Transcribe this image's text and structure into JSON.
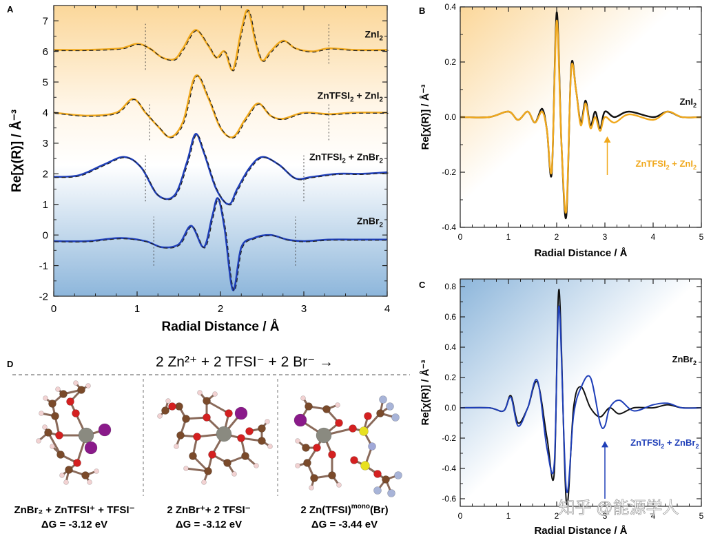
{
  "panels": {
    "A": {
      "letter": "A"
    },
    "B": {
      "letter": "B"
    },
    "C": {
      "letter": "C"
    },
    "D": {
      "letter": "D"
    }
  },
  "colors": {
    "orange": "#f0a81c",
    "blue": "#1f3fb8",
    "black": "#111111",
    "dashed": "#222222"
  },
  "chart_data": [
    {
      "id": "A",
      "type": "line",
      "xlabel": "Radial Distance / Å",
      "ylabel": "Re[χ(R)] / Å⁻³",
      "xlim": [
        0,
        4
      ],
      "ylim": [
        -2,
        7.5
      ],
      "xticks": [
        "0",
        "1",
        "2",
        "3",
        "4"
      ],
      "yticks": [
        "-2",
        "-1",
        "0",
        "1",
        "2",
        "3",
        "4",
        "5",
        "6",
        "7"
      ],
      "grid": false,
      "series": [
        {
          "name": "ZnI₂",
          "color": "orange",
          "offset": 6.05,
          "x": [
            0,
            0.4,
            0.8,
            1.0,
            1.15,
            1.3,
            1.45,
            1.55,
            1.7,
            1.85,
            1.95,
            2.05,
            2.15,
            2.25,
            2.33,
            2.42,
            2.5,
            2.6,
            2.75,
            2.9,
            3.1,
            3.3,
            3.6,
            4.0
          ],
          "y": [
            6.05,
            6.05,
            6.1,
            6.25,
            6.1,
            5.8,
            5.75,
            6.1,
            6.7,
            6.2,
            5.8,
            6.0,
            5.4,
            6.7,
            7.35,
            6.3,
            5.7,
            6.0,
            6.35,
            6.1,
            6.0,
            6.1,
            6.05,
            6.05
          ],
          "fit_dashed": true
        },
        {
          "name": "ZnTFSI₂ + ZnI₂",
          "color": "orange",
          "offset": 4.0,
          "x": [
            0,
            0.4,
            0.75,
            0.95,
            1.1,
            1.25,
            1.4,
            1.55,
            1.7,
            1.85,
            2.0,
            2.15,
            2.3,
            2.45,
            2.6,
            2.75,
            3.0,
            3.3,
            3.6,
            4.0
          ],
          "y": [
            4.0,
            3.9,
            4.0,
            4.45,
            4.0,
            3.55,
            3.2,
            3.7,
            5.2,
            4.5,
            3.5,
            3.2,
            3.8,
            4.3,
            3.9,
            3.8,
            4.0,
            3.95,
            4.0,
            4.0
          ],
          "fit_dashed": true
        },
        {
          "name": "ZnTFSI₂ + ZnBr₂",
          "color": "blue",
          "offset": 1.95,
          "x": [
            0,
            0.3,
            0.6,
            0.85,
            1.05,
            1.25,
            1.45,
            1.6,
            1.7,
            1.8,
            1.95,
            2.1,
            2.2,
            2.35,
            2.5,
            2.7,
            2.9,
            3.1,
            3.4,
            3.7,
            4.0
          ],
          "y": [
            1.9,
            1.95,
            2.3,
            2.55,
            2.2,
            1.3,
            1.3,
            2.4,
            3.3,
            2.7,
            1.5,
            1.0,
            1.5,
            2.2,
            2.55,
            2.3,
            1.85,
            1.9,
            2.0,
            2.0,
            2.05
          ],
          "fit_dashed": true
        },
        {
          "name": "ZnBr₂",
          "color": "blue",
          "offset": -0.2,
          "x": [
            0,
            0.4,
            0.8,
            1.1,
            1.3,
            1.5,
            1.65,
            1.8,
            1.9,
            1.97,
            2.05,
            2.15,
            2.25,
            2.4,
            2.6,
            2.8,
            3.0,
            3.3,
            3.6,
            4.0
          ],
          "y": [
            -0.2,
            -0.2,
            -0.1,
            -0.2,
            -0.4,
            -0.3,
            0.3,
            -0.4,
            0.6,
            1.2,
            0.2,
            -1.8,
            -0.4,
            -0.1,
            0.0,
            -0.15,
            -0.2,
            -0.15,
            -0.15,
            -0.15
          ],
          "fit_dashed": true
        }
      ],
      "vlines": [
        {
          "x": 1.1,
          "from": 5.4,
          "to": 6.9
        },
        {
          "x": 3.3,
          "from": 5.6,
          "to": 6.9
        },
        {
          "x": 1.15,
          "from": 3.1,
          "to": 4.3
        },
        {
          "x": 3.3,
          "from": 3.1,
          "to": 4.3
        },
        {
          "x": 1.1,
          "from": 1.1,
          "to": 2.6
        },
        {
          "x": 3.0,
          "from": 1.1,
          "to": 2.6
        },
        {
          "x": 1.2,
          "from": -1.0,
          "to": 0.6
        },
        {
          "x": 2.9,
          "from": -1.0,
          "to": 0.6
        }
      ],
      "labels": [
        {
          "text_a": "ZnI",
          "sub": "2",
          "text_b": "",
          "x": 3.95,
          "y": 6.45,
          "anchor": "end"
        },
        {
          "text_a": "ZnTFSI",
          "sub": "2",
          "text_b": " + ZnI",
          "sub2": "2",
          "x": 3.95,
          "y": 4.45,
          "anchor": "end"
        },
        {
          "text_a": "ZnTFSI",
          "sub": "2",
          "text_b": " + ZnBr",
          "sub2": "2",
          "x": 3.95,
          "y": 2.45,
          "anchor": "end"
        },
        {
          "text_a": "ZnBr",
          "sub": "2",
          "text_b": "",
          "x": 3.95,
          "y": 0.35,
          "anchor": "end"
        }
      ]
    },
    {
      "id": "B",
      "type": "line",
      "xlabel": "Radial Distance / Å",
      "ylabel": "Re[χ(R)] / Å⁻³",
      "xlim": [
        0,
        5
      ],
      "ylim": [
        -0.4,
        0.4
      ],
      "xticks": [
        "0",
        "1",
        "2",
        "3",
        "4",
        "5"
      ],
      "yticks": [
        "-0.4",
        "-0.2",
        "0.0",
        "0.2",
        "0.4"
      ],
      "series": [
        {
          "name": "ZnI₂",
          "color": "black",
          "x": [
            0,
            0.6,
            1.0,
            1.2,
            1.4,
            1.55,
            1.7,
            1.8,
            1.9,
            2.0,
            2.1,
            2.2,
            2.3,
            2.4,
            2.5,
            2.6,
            2.7,
            2.8,
            2.9,
            3.0,
            3.2,
            3.5,
            4.0,
            4.3,
            4.6,
            5.0
          ],
          "y": [
            0,
            0.0,
            0.02,
            -0.01,
            0.02,
            -0.02,
            0.03,
            -0.05,
            -0.2,
            0.38,
            -0.1,
            -0.36,
            0.18,
            0.1,
            -0.02,
            0.06,
            -0.03,
            0.02,
            -0.04,
            0.02,
            0.0,
            0.02,
            0.0,
            0.02,
            0.0,
            0.0
          ]
        },
        {
          "name": "ZnTFSI₂ + ZnI₂",
          "color": "orange",
          "x": [
            0,
            0.6,
            1.0,
            1.2,
            1.4,
            1.55,
            1.7,
            1.8,
            1.9,
            2.0,
            2.1,
            2.2,
            2.3,
            2.4,
            2.5,
            2.6,
            2.7,
            2.8,
            2.9,
            3.0,
            3.2,
            3.5,
            4.0,
            4.3,
            4.6,
            5.0
          ],
          "y": [
            0,
            0.0,
            0.02,
            -0.01,
            0.02,
            -0.02,
            0.02,
            -0.05,
            -0.19,
            0.35,
            -0.1,
            -0.34,
            0.17,
            0.1,
            -0.03,
            0.05,
            -0.04,
            0.0,
            -0.05,
            0.0,
            -0.02,
            0.01,
            -0.01,
            0.02,
            0.0,
            0.0
          ]
        }
      ],
      "labels": [
        {
          "text_a": "ZnI",
          "sub": "2",
          "text_b": "",
          "x": 4.9,
          "y": 0.045,
          "anchor": "end",
          "color": "black"
        },
        {
          "text_a": "ZnTFSI",
          "sub": "2",
          "text_b": " + ZnI",
          "sub2": "2",
          "x": 4.9,
          "y": -0.18,
          "anchor": "end",
          "color": "orange"
        }
      ],
      "arrow": {
        "x": 3.05,
        "y_from": -0.21,
        "y_to": -0.07,
        "color": "orange"
      }
    },
    {
      "id": "C",
      "type": "line",
      "xlabel": "Radial Distance / Å",
      "ylabel": "Re[χ(R)] / Å⁻³",
      "xlim": [
        0,
        5
      ],
      "ylim": [
        -0.65,
        0.85
      ],
      "xticks": [
        "0",
        "1",
        "2",
        "3",
        "4",
        "5"
      ],
      "yticks": [
        "-0.6",
        "-0.4",
        "-0.2",
        "0.0",
        "0.2",
        "0.4",
        "0.6",
        "0.8"
      ],
      "series": [
        {
          "name": "ZnBr₂",
          "color": "black",
          "x": [
            0,
            0.6,
            0.9,
            1.05,
            1.2,
            1.4,
            1.6,
            1.8,
            1.95,
            2.05,
            2.2,
            2.35,
            2.5,
            2.7,
            2.9,
            3.1,
            3.3,
            3.6,
            4.0,
            4.3,
            4.6,
            5.0
          ],
          "y": [
            0,
            0.0,
            -0.02,
            0.08,
            -0.1,
            0.0,
            0.17,
            -0.2,
            -0.43,
            0.78,
            -0.62,
            0.0,
            0.14,
            0.0,
            -0.06,
            0.0,
            -0.04,
            0.0,
            0.0,
            0.02,
            0.0,
            0.0
          ]
        },
        {
          "name": "ZnTFSI₂ + ZnBr₂",
          "color": "blue",
          "x": [
            0,
            0.6,
            0.9,
            1.05,
            1.2,
            1.4,
            1.6,
            1.8,
            1.95,
            2.05,
            2.2,
            2.35,
            2.5,
            2.7,
            2.9,
            3.0,
            3.1,
            3.3,
            3.6,
            4.0,
            4.3,
            4.6,
            5.0
          ],
          "y": [
            0,
            0.0,
            -0.02,
            0.07,
            -0.12,
            0.0,
            0.18,
            -0.27,
            -0.37,
            0.67,
            -0.54,
            -0.05,
            0.13,
            0.2,
            -0.1,
            -0.12,
            0.0,
            0.05,
            -0.02,
            0.02,
            0.03,
            0.0,
            0.0
          ]
        }
      ],
      "labels": [
        {
          "text_a": "ZnBr",
          "sub": "2",
          "text_b": "",
          "x": 4.9,
          "y": 0.3,
          "anchor": "end",
          "color": "black"
        },
        {
          "text_a": "ZnTFSI",
          "sub": "2",
          "text_b": " + ZnBr",
          "sub2": "2",
          "x": 4.95,
          "y": -0.25,
          "anchor": "end",
          "color": "blue"
        }
      ],
      "arrow": {
        "x": 3.0,
        "y_from": -0.6,
        "y_to": -0.22,
        "color": "blue"
      }
    }
  ],
  "panel_d": {
    "equation": "2 Zn²⁺ + 2 TFSI⁻ + 2 Br⁻ →",
    "structures": [
      {
        "caption": "ZnBr₂ + ZnTFSI⁺ + TFSI⁻",
        "dg": "ΔG = -3.12 eV"
      },
      {
        "caption": "2 ZnBr⁺+ 2 TFSI⁻",
        "dg": "ΔG = -3.12 eV"
      },
      {
        "caption_a": "2 Zn(TFSI)",
        "caption_sup": "mono",
        "caption_b": "(Br)",
        "dg": "ΔG = -3.44 eV"
      }
    ]
  },
  "watermark": "知乎 @能源学人"
}
